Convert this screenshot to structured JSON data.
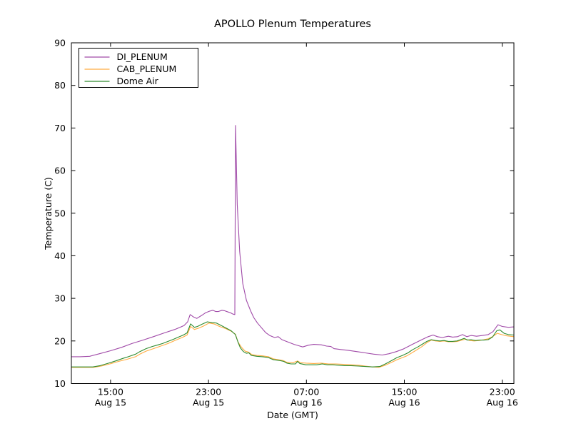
{
  "figure": {
    "background": "#ffffff",
    "frame_color": "#000000",
    "text_color": "#000000"
  },
  "chart_data": {
    "type": "line",
    "title": "APOLLO Plenum Temperatures",
    "xlabel": "Date (GMT)",
    "ylabel": "Temperature (C)",
    "grid": false,
    "legend_position": "upper left",
    "x_unit": "hours since Aug 15 00:00 GMT",
    "xlim": [
      11.8,
      47.95
    ],
    "ylim": [
      10,
      90
    ],
    "yticks": [
      10,
      20,
      30,
      40,
      50,
      60,
      70,
      80,
      90
    ],
    "xticks": [
      {
        "h": 15,
        "time": "15:00",
        "date": "Aug 15"
      },
      {
        "h": 23,
        "time": "23:00",
        "date": "Aug 15"
      },
      {
        "h": 31,
        "time": "07:00",
        "date": "Aug 16"
      },
      {
        "h": 39,
        "time": "15:00",
        "date": "Aug 16"
      },
      {
        "h": 47,
        "time": "23:00",
        "date": "Aug 16"
      }
    ],
    "series": [
      {
        "name": "DI_PLENUM",
        "color": "#A04AA8",
        "points": [
          [
            11.8,
            16.3
          ],
          [
            12.5,
            16.3
          ],
          [
            13.3,
            16.4
          ],
          [
            14.1,
            17.0
          ],
          [
            15.0,
            17.7
          ],
          [
            15.9,
            18.5
          ],
          [
            16.75,
            19.4
          ],
          [
            17.65,
            20.2
          ],
          [
            18.5,
            21.0
          ],
          [
            19.4,
            21.9
          ],
          [
            20.25,
            22.7
          ],
          [
            21.0,
            23.6
          ],
          [
            21.3,
            24.5
          ],
          [
            21.5,
            26.2
          ],
          [
            21.8,
            25.6
          ],
          [
            22.05,
            25.3
          ],
          [
            22.5,
            26.1
          ],
          [
            22.75,
            26.6
          ],
          [
            23.1,
            27.0
          ],
          [
            23.35,
            27.2
          ],
          [
            23.6,
            26.9
          ],
          [
            23.8,
            26.9
          ],
          [
            24.1,
            27.2
          ],
          [
            24.3,
            27.1
          ],
          [
            24.6,
            26.8
          ],
          [
            24.8,
            26.6
          ],
          [
            25.0,
            26.3
          ],
          [
            25.15,
            26.2
          ],
          [
            25.21,
            70.6
          ],
          [
            25.35,
            52.0
          ],
          [
            25.55,
            41.0
          ],
          [
            25.8,
            33.5
          ],
          [
            26.1,
            29.5
          ],
          [
            26.45,
            27.0
          ],
          [
            26.7,
            25.5
          ],
          [
            27.0,
            24.2
          ],
          [
            27.3,
            23.2
          ],
          [
            27.66,
            22.0
          ],
          [
            28.0,
            21.3
          ],
          [
            28.4,
            20.8
          ],
          [
            28.7,
            21.0
          ],
          [
            29.0,
            20.3
          ],
          [
            29.45,
            19.8
          ],
          [
            30.0,
            19.2
          ],
          [
            30.35,
            18.9
          ],
          [
            30.7,
            18.6
          ],
          [
            31.15,
            19.0
          ],
          [
            31.6,
            19.2
          ],
          [
            32.2,
            19.1
          ],
          [
            32.65,
            18.8
          ],
          [
            33.0,
            18.7
          ],
          [
            33.25,
            18.2
          ],
          [
            33.8,
            18.0
          ],
          [
            34.4,
            17.8
          ],
          [
            35.1,
            17.5
          ],
          [
            35.8,
            17.2
          ],
          [
            36.5,
            16.9
          ],
          [
            37.2,
            16.7
          ],
          [
            37.75,
            17.0
          ],
          [
            38.35,
            17.5
          ],
          [
            38.9,
            18.1
          ],
          [
            39.65,
            19.2
          ],
          [
            40.35,
            20.2
          ],
          [
            40.95,
            21.0
          ],
          [
            41.35,
            21.4
          ],
          [
            41.7,
            21.0
          ],
          [
            42.1,
            20.8
          ],
          [
            42.6,
            21.1
          ],
          [
            42.95,
            20.9
          ],
          [
            43.35,
            21.0
          ],
          [
            43.75,
            21.5
          ],
          [
            44.1,
            21.0
          ],
          [
            44.45,
            21.3
          ],
          [
            44.9,
            21.1
          ],
          [
            45.4,
            21.3
          ],
          [
            45.85,
            21.5
          ],
          [
            46.25,
            22.2
          ],
          [
            46.65,
            23.8
          ],
          [
            47.0,
            23.4
          ],
          [
            47.5,
            23.2
          ],
          [
            47.95,
            23.3
          ]
        ]
      },
      {
        "name": "CAB_PLENUM",
        "color": "#FFAC40",
        "points": [
          [
            11.8,
            13.8
          ],
          [
            12.7,
            13.8
          ],
          [
            13.6,
            13.8
          ],
          [
            14.25,
            14.1
          ],
          [
            14.95,
            14.6
          ],
          [
            15.65,
            15.2
          ],
          [
            16.35,
            15.7
          ],
          [
            17.05,
            16.3
          ],
          [
            17.4,
            16.9
          ],
          [
            17.9,
            17.6
          ],
          [
            18.5,
            18.2
          ],
          [
            19.1,
            18.8
          ],
          [
            19.7,
            19.4
          ],
          [
            20.25,
            20.1
          ],
          [
            20.85,
            20.8
          ],
          [
            21.25,
            21.4
          ],
          [
            21.54,
            23.4
          ],
          [
            21.85,
            22.7
          ],
          [
            22.2,
            23.0
          ],
          [
            22.6,
            23.5
          ],
          [
            23.05,
            24.2
          ],
          [
            23.45,
            24.0
          ],
          [
            23.9,
            23.4
          ],
          [
            24.4,
            22.9
          ],
          [
            24.85,
            22.3
          ],
          [
            25.2,
            21.6
          ],
          [
            25.4,
            19.8
          ],
          [
            25.7,
            18.5
          ],
          [
            26.0,
            17.6
          ],
          [
            26.25,
            17.4
          ],
          [
            26.55,
            16.8
          ],
          [
            26.95,
            16.6
          ],
          [
            27.4,
            16.5
          ],
          [
            27.9,
            16.3
          ],
          [
            28.3,
            15.8
          ],
          [
            28.7,
            15.6
          ],
          [
            29.1,
            15.4
          ],
          [
            29.4,
            15.0
          ],
          [
            29.9,
            14.9
          ],
          [
            30.28,
            15.3
          ],
          [
            30.52,
            14.9
          ],
          [
            31.0,
            14.8
          ],
          [
            31.6,
            14.7
          ],
          [
            32.2,
            14.8
          ],
          [
            32.8,
            14.6
          ],
          [
            33.4,
            14.6
          ],
          [
            34.0,
            14.5
          ],
          [
            34.65,
            14.4
          ],
          [
            35.25,
            14.3
          ],
          [
            35.8,
            14.1
          ],
          [
            36.4,
            13.9
          ],
          [
            36.9,
            13.8
          ],
          [
            37.45,
            14.3
          ],
          [
            37.9,
            14.9
          ],
          [
            38.4,
            15.6
          ],
          [
            38.85,
            16.1
          ],
          [
            39.2,
            16.5
          ],
          [
            39.5,
            17.0
          ],
          [
            39.9,
            17.7
          ],
          [
            40.4,
            18.6
          ],
          [
            40.85,
            19.6
          ],
          [
            41.2,
            20.2
          ],
          [
            41.55,
            20.0
          ],
          [
            41.9,
            19.9
          ],
          [
            42.25,
            20.0
          ],
          [
            42.6,
            19.8
          ],
          [
            42.95,
            19.8
          ],
          [
            43.35,
            19.9
          ],
          [
            43.7,
            20.2
          ],
          [
            44.0,
            20.4
          ],
          [
            44.35,
            20.1
          ],
          [
            44.7,
            20.0
          ],
          [
            45.1,
            20.1
          ],
          [
            45.5,
            20.3
          ],
          [
            45.85,
            20.5
          ],
          [
            46.2,
            21.0
          ],
          [
            46.6,
            21.8
          ],
          [
            46.95,
            21.5
          ],
          [
            47.35,
            21.2
          ],
          [
            47.95,
            21.0
          ]
        ]
      },
      {
        "name": "Dome Air",
        "color": "#2E8B2E",
        "points": [
          [
            11.8,
            13.9
          ],
          [
            12.7,
            13.9
          ],
          [
            13.55,
            13.9
          ],
          [
            14.15,
            14.2
          ],
          [
            14.85,
            14.8
          ],
          [
            15.5,
            15.4
          ],
          [
            16.0,
            15.9
          ],
          [
            16.45,
            16.3
          ],
          [
            17.05,
            16.9
          ],
          [
            17.4,
            17.5
          ],
          [
            17.9,
            18.2
          ],
          [
            18.4,
            18.7
          ],
          [
            18.9,
            19.1
          ],
          [
            19.25,
            19.4
          ],
          [
            19.7,
            19.9
          ],
          [
            20.15,
            20.4
          ],
          [
            20.55,
            20.9
          ],
          [
            20.95,
            21.4
          ],
          [
            21.25,
            21.9
          ],
          [
            21.54,
            24.0
          ],
          [
            21.85,
            23.2
          ],
          [
            22.1,
            23.4
          ],
          [
            22.45,
            23.9
          ],
          [
            22.9,
            24.5
          ],
          [
            23.3,
            24.3
          ],
          [
            23.65,
            24.2
          ],
          [
            24.05,
            23.6
          ],
          [
            24.45,
            23.0
          ],
          [
            24.85,
            22.4
          ],
          [
            25.2,
            21.5
          ],
          [
            25.4,
            19.8
          ],
          [
            25.6,
            18.4
          ],
          [
            25.85,
            17.5
          ],
          [
            26.1,
            17.1
          ],
          [
            26.3,
            17.2
          ],
          [
            26.5,
            16.6
          ],
          [
            26.95,
            16.4
          ],
          [
            27.4,
            16.3
          ],
          [
            27.9,
            16.1
          ],
          [
            28.3,
            15.6
          ],
          [
            28.85,
            15.4
          ],
          [
            29.15,
            15.2
          ],
          [
            29.4,
            14.8
          ],
          [
            29.75,
            14.6
          ],
          [
            30.1,
            14.6
          ],
          [
            30.28,
            15.2
          ],
          [
            30.46,
            14.7
          ],
          [
            30.95,
            14.4
          ],
          [
            31.4,
            14.4
          ],
          [
            31.85,
            14.4
          ],
          [
            32.3,
            14.6
          ],
          [
            32.7,
            14.4
          ],
          [
            33.15,
            14.4
          ],
          [
            33.6,
            14.3
          ],
          [
            34.1,
            14.2
          ],
          [
            34.65,
            14.2
          ],
          [
            35.25,
            14.1
          ],
          [
            35.8,
            14.0
          ],
          [
            36.4,
            13.9
          ],
          [
            37.0,
            14.0
          ],
          [
            37.45,
            14.6
          ],
          [
            37.9,
            15.3
          ],
          [
            38.4,
            16.1
          ],
          [
            38.85,
            16.6
          ],
          [
            39.3,
            17.2
          ],
          [
            39.65,
            17.9
          ],
          [
            40.1,
            18.6
          ],
          [
            40.5,
            19.3
          ],
          [
            40.85,
            19.9
          ],
          [
            41.2,
            20.3
          ],
          [
            41.55,
            20.1
          ],
          [
            41.9,
            20.0
          ],
          [
            42.25,
            20.1
          ],
          [
            42.6,
            19.9
          ],
          [
            42.95,
            19.9
          ],
          [
            43.3,
            20.0
          ],
          [
            43.6,
            20.3
          ],
          [
            43.9,
            20.6
          ],
          [
            44.15,
            20.2
          ],
          [
            44.45,
            20.3
          ],
          [
            44.8,
            20.1
          ],
          [
            45.15,
            20.2
          ],
          [
            45.5,
            20.2
          ],
          [
            45.85,
            20.3
          ],
          [
            46.2,
            20.9
          ],
          [
            46.55,
            22.4
          ],
          [
            46.8,
            22.6
          ],
          [
            47.15,
            21.8
          ],
          [
            47.5,
            21.5
          ],
          [
            47.95,
            21.4
          ]
        ]
      }
    ]
  }
}
